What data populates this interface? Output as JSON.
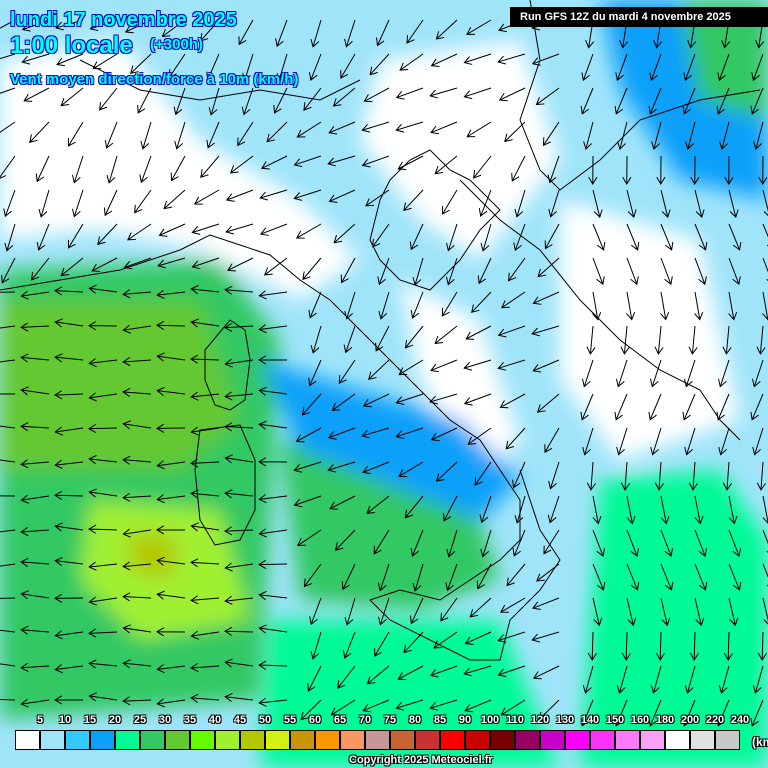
{
  "header": {
    "date": "lundi 17 novembre 2025",
    "time": "1:00 locale",
    "lead": "(+300h)",
    "parameter": "Vent moyen direction/force à 10m (km/h)",
    "run": "Run GFS 12Z du mardi 4 novembre 2025"
  },
  "legend": {
    "labels": [
      "5",
      "10",
      "15",
      "20",
      "25",
      "30",
      "35",
      "40",
      "45",
      "50",
      "55",
      "60",
      "65",
      "70",
      "75",
      "80",
      "85",
      "90",
      "100",
      "110",
      "120",
      "130",
      "140",
      "150",
      "160",
      "180",
      "200",
      "220",
      "240"
    ],
    "colors": [
      "#ffffff",
      "#a0e4fa",
      "#32c8fa",
      "#0aa0fa",
      "#00fa96",
      "#32c864",
      "#64c832",
      "#64fa00",
      "#a0f032",
      "#b4c800",
      "#d2f014",
      "#c89600",
      "#fa9600",
      "#fa9664",
      "#c89696",
      "#c86432",
      "#c83232",
      "#fa0000",
      "#c80000",
      "#780000",
      "#960064",
      "#c800c8",
      "#fa00fa",
      "#fa32fa",
      "#fa7afa",
      "#faa0fa",
      "#ffffff",
      "#e1e1e1",
      "#c8c8c8"
    ],
    "unit": "(km/h)"
  },
  "copyright": "Copyright 2025 Meteociel.fr"
}
